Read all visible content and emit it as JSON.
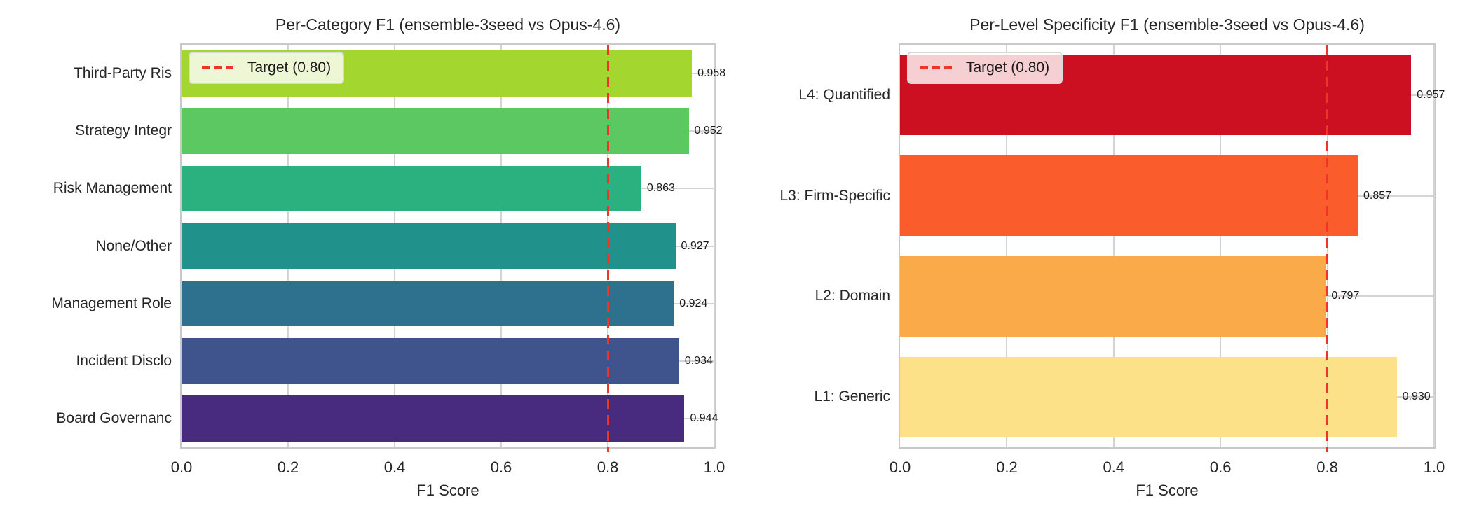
{
  "chart_data": [
    {
      "type": "bar",
      "orientation": "horizontal",
      "title": "Per-Category F1 (ensemble-3seed vs Opus-4.6)",
      "xlabel": "F1 Score",
      "xlim": [
        0.0,
        1.0
      ],
      "xticks": [
        0.0,
        0.2,
        0.4,
        0.6,
        0.8,
        1.0
      ],
      "xtick_labels": [
        "0.0",
        "0.2",
        "0.4",
        "0.6",
        "0.8",
        "1.0"
      ],
      "grid": true,
      "legend_position": "upper left",
      "target_line": {
        "value": 0.8,
        "label": "Target (0.80)",
        "style": "dashed",
        "color": "#f0342a"
      },
      "categories": [
        "Third-Party Ris",
        "Strategy Integr",
        "Risk Management",
        "None/Other",
        "Management Role",
        "Incident Disclo",
        "Board Governanc"
      ],
      "values": [
        0.958,
        0.952,
        0.863,
        0.927,
        0.924,
        0.934,
        0.944
      ],
      "value_labels": [
        "0.958",
        "0.952",
        "0.863",
        "0.927",
        "0.924",
        "0.934",
        "0.944"
      ],
      "bar_colors": [
        "#a3d62f",
        "#5bc862",
        "#2bb07f",
        "#21918c",
        "#2e718e",
        "#3f538d",
        "#482b7e"
      ]
    },
    {
      "type": "bar",
      "orientation": "horizontal",
      "title": "Per-Level Specificity F1 (ensemble-3seed vs Opus-4.6)",
      "xlabel": "F1 Score",
      "xlim": [
        0.0,
        1.0
      ],
      "xticks": [
        0.0,
        0.2,
        0.4,
        0.6,
        0.8,
        1.0
      ],
      "xtick_labels": [
        "0.0",
        "0.2",
        "0.4",
        "0.6",
        "0.8",
        "1.0"
      ],
      "grid": true,
      "legend_position": "upper left",
      "target_line": {
        "value": 0.8,
        "label": "Target (0.80)",
        "style": "dashed",
        "color": "#f0342a"
      },
      "categories": [
        "L4: Quantified",
        "L3: Firm-Specific",
        "L2: Domain",
        "L1: Generic"
      ],
      "values": [
        0.957,
        0.857,
        0.797,
        0.93
      ],
      "value_labels": [
        "0.957",
        "0.857",
        "0.797",
        "0.930"
      ],
      "bar_colors": [
        "#cd1021",
        "#fa5c2c",
        "#fbaa49",
        "#fde189"
      ]
    }
  ]
}
